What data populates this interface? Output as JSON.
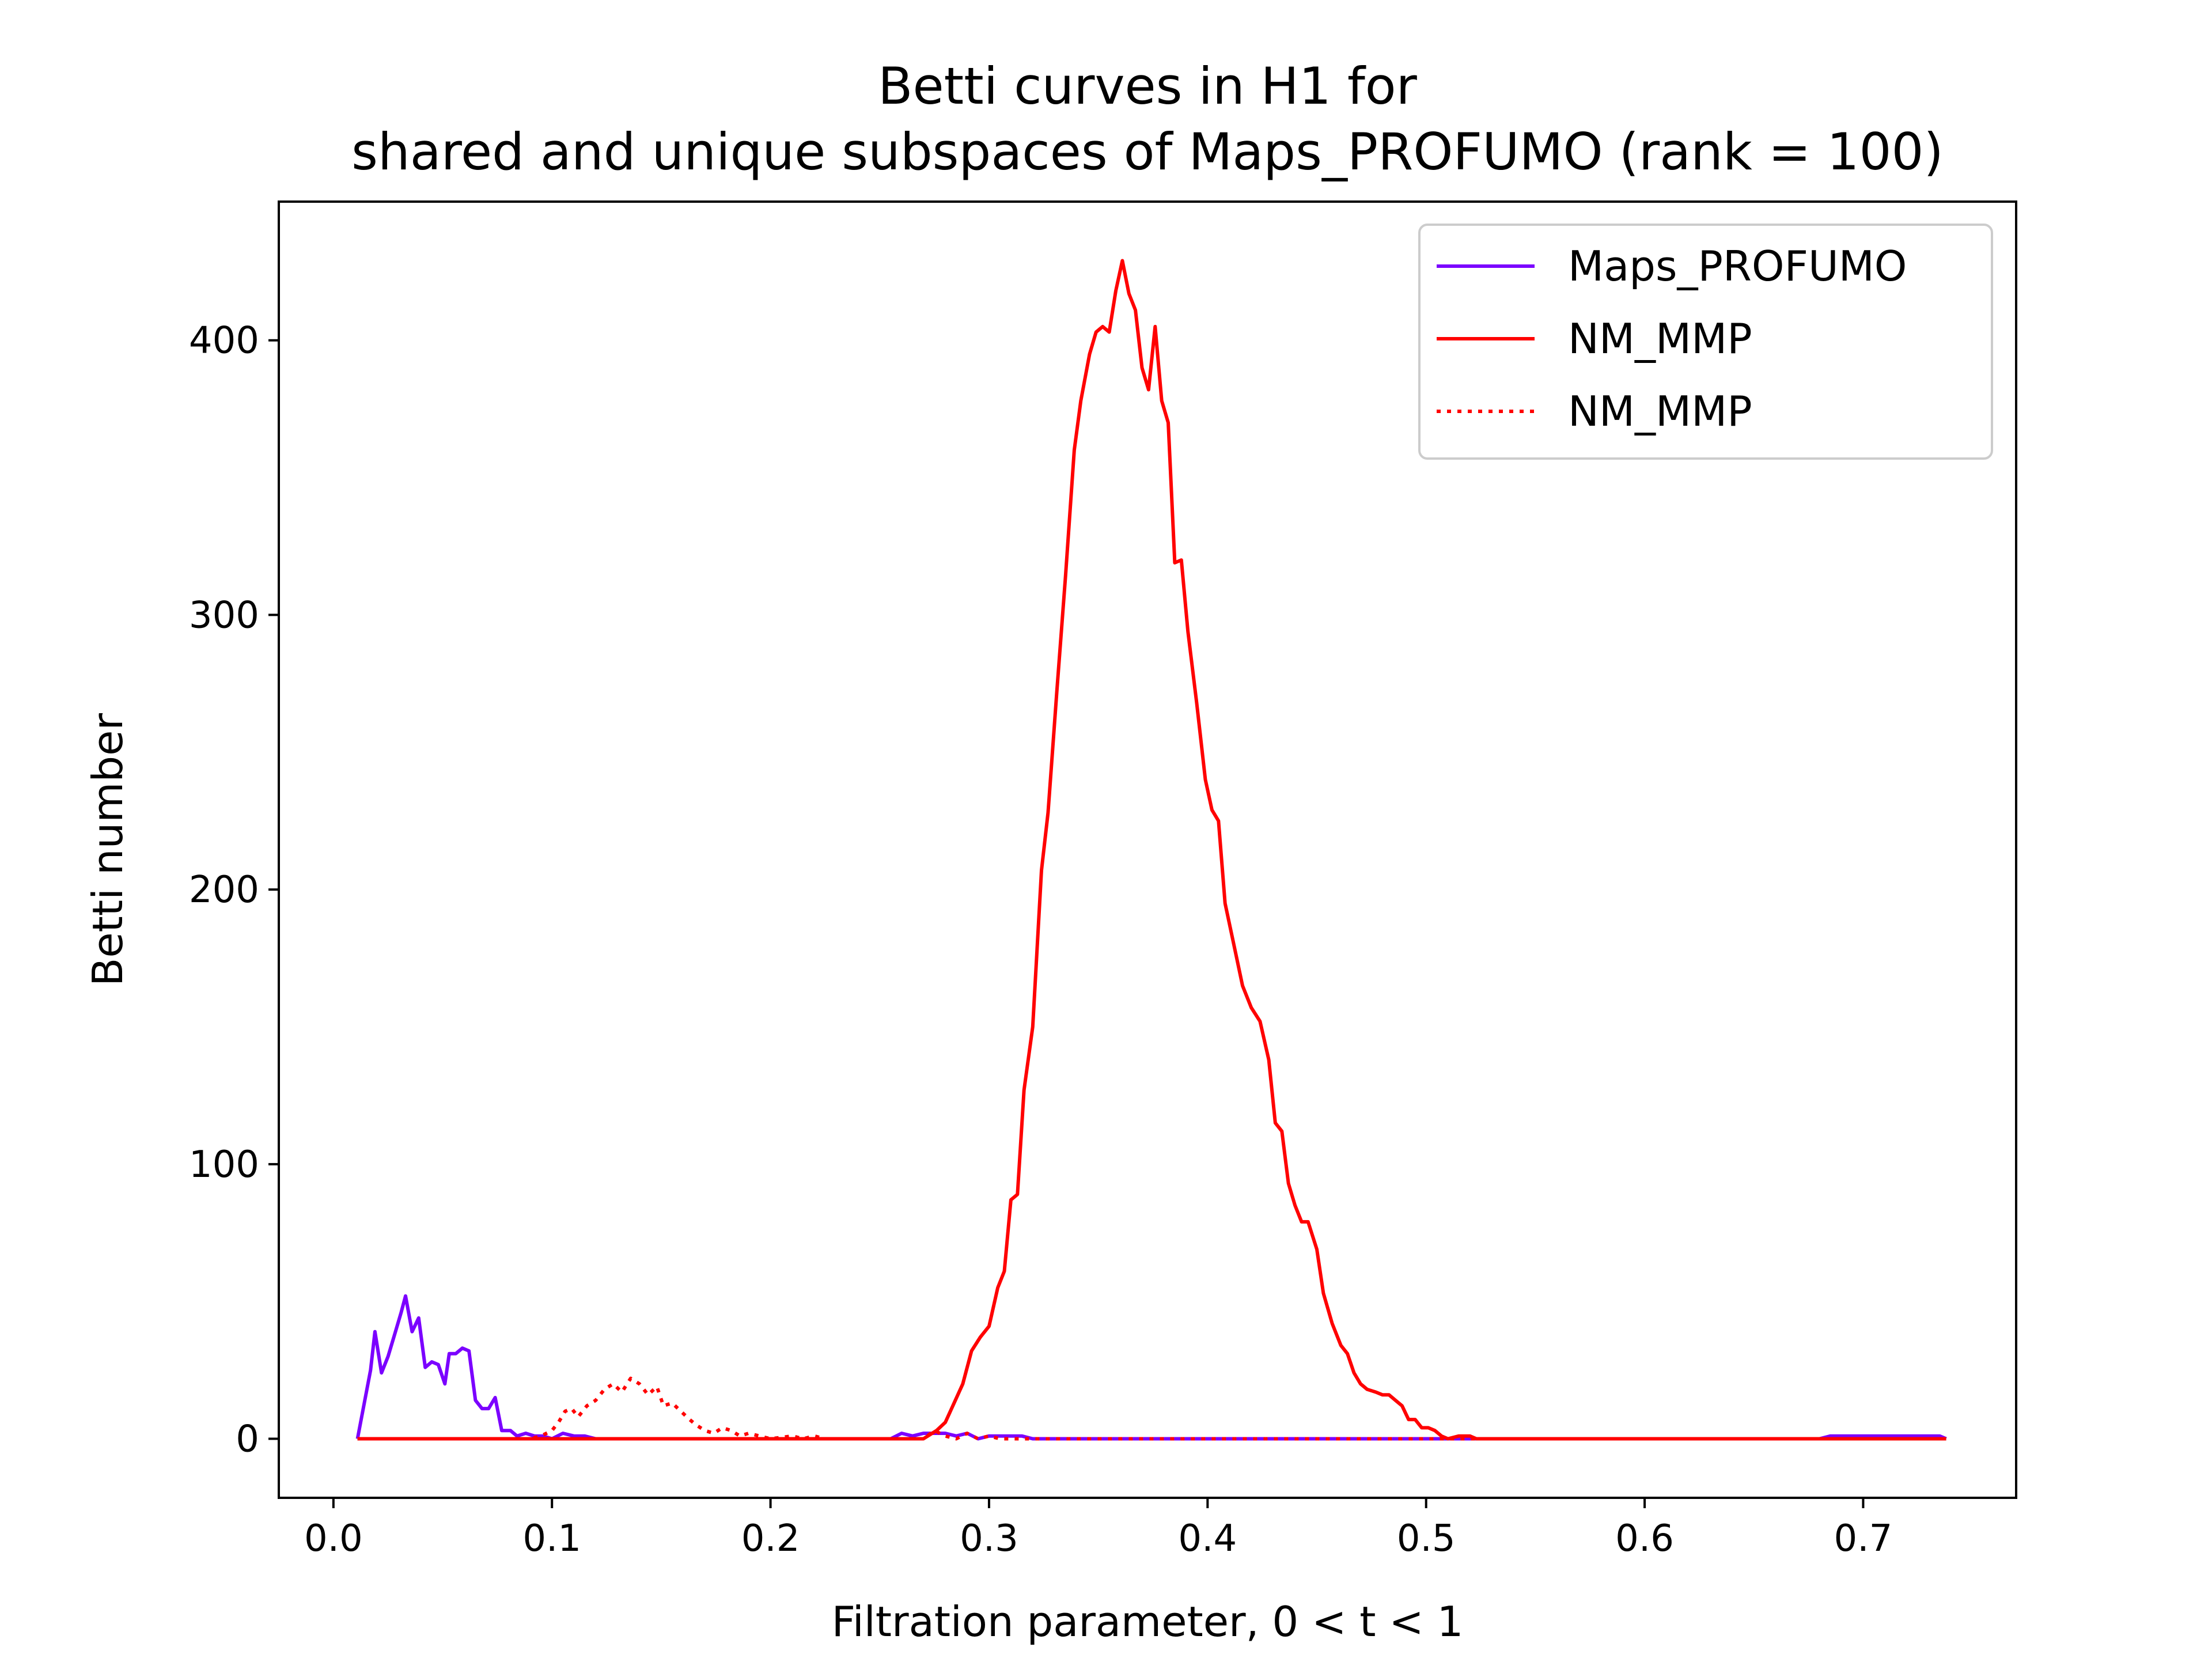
{
  "chart_data": {
    "type": "line",
    "title": [
      "Betti curves in H1 for",
      "shared and unique subspaces of Maps_PROFUMO (rank = 100)"
    ],
    "xlabel": "Filtration parameter, 0 < t < 1",
    "ylabel": "Betti number",
    "xlim": [
      -0.025,
      0.77
    ],
    "ylim": [
      -21.5,
      450.5
    ],
    "xticks": [
      0.0,
      0.1,
      0.2,
      0.3,
      0.4,
      0.5,
      0.6,
      0.7
    ],
    "xtick_labels": [
      "0.0",
      "0.1",
      "0.2",
      "0.3",
      "0.4",
      "0.5",
      "0.6",
      "0.7"
    ],
    "yticks": [
      0,
      100,
      200,
      300,
      400
    ],
    "ytick_labels": [
      "0",
      "100",
      "200",
      "300",
      "400"
    ],
    "grid": false,
    "legend_position": "top-right",
    "series": [
      {
        "name": "Maps_PROFUMO",
        "color": "#7b00ff",
        "style": "solid",
        "points": [
          [
            0.011,
            0
          ],
          [
            0.017,
            25
          ],
          [
            0.019,
            39
          ],
          [
            0.022,
            24
          ],
          [
            0.025,
            30
          ],
          [
            0.028,
            38
          ],
          [
            0.031,
            46
          ],
          [
            0.033,
            52
          ],
          [
            0.036,
            39
          ],
          [
            0.039,
            44
          ],
          [
            0.042,
            26
          ],
          [
            0.045,
            28
          ],
          [
            0.048,
            27
          ],
          [
            0.051,
            20
          ],
          [
            0.053,
            31
          ],
          [
            0.056,
            31
          ],
          [
            0.059,
            33
          ],
          [
            0.062,
            32
          ],
          [
            0.065,
            14
          ],
          [
            0.068,
            11
          ],
          [
            0.071,
            11
          ],
          [
            0.074,
            15
          ],
          [
            0.077,
            3
          ],
          [
            0.081,
            3
          ],
          [
            0.084,
            1
          ],
          [
            0.088,
            2
          ],
          [
            0.092,
            1
          ],
          [
            0.096,
            1
          ],
          [
            0.1,
            0
          ],
          [
            0.105,
            2
          ],
          [
            0.11,
            1
          ],
          [
            0.115,
            1
          ],
          [
            0.12,
            0
          ],
          [
            0.15,
            0
          ],
          [
            0.2,
            0
          ],
          [
            0.25,
            0
          ],
          [
            0.255,
            0
          ],
          [
            0.26,
            2
          ],
          [
            0.265,
            1
          ],
          [
            0.27,
            2
          ],
          [
            0.275,
            2
          ],
          [
            0.28,
            2
          ],
          [
            0.285,
            1
          ],
          [
            0.29,
            2
          ],
          [
            0.295,
            0
          ],
          [
            0.3,
            1
          ],
          [
            0.31,
            1
          ],
          [
            0.315,
            1
          ],
          [
            0.32,
            0
          ],
          [
            0.4,
            0
          ],
          [
            0.5,
            0
          ],
          [
            0.6,
            0
          ],
          [
            0.68,
            0
          ],
          [
            0.685,
            1
          ],
          [
            0.7,
            1
          ],
          [
            0.735,
            1
          ],
          [
            0.738,
            0
          ]
        ]
      },
      {
        "name": "NM_MMP",
        "color": "#ff0000",
        "style": "solid",
        "points": [
          [
            0.011,
            0
          ],
          [
            0.1,
            0
          ],
          [
            0.2,
            0
          ],
          [
            0.27,
            0
          ],
          [
            0.272,
            1
          ],
          [
            0.276,
            3
          ],
          [
            0.28,
            6
          ],
          [
            0.284,
            13
          ],
          [
            0.288,
            20
          ],
          [
            0.292,
            32
          ],
          [
            0.296,
            37
          ],
          [
            0.3,
            41
          ],
          [
            0.304,
            55
          ],
          [
            0.307,
            61
          ],
          [
            0.31,
            87
          ],
          [
            0.313,
            89
          ],
          [
            0.316,
            127
          ],
          [
            0.32,
            150
          ],
          [
            0.324,
            207
          ],
          [
            0.327,
            228
          ],
          [
            0.331,
            272
          ],
          [
            0.335,
            314
          ],
          [
            0.339,
            360
          ],
          [
            0.342,
            378
          ],
          [
            0.346,
            395
          ],
          [
            0.349,
            403
          ],
          [
            0.352,
            405
          ],
          [
            0.355,
            403
          ],
          [
            0.358,
            418
          ],
          [
            0.361,
            429
          ],
          [
            0.364,
            417
          ],
          [
            0.367,
            411
          ],
          [
            0.37,
            390
          ],
          [
            0.373,
            382
          ],
          [
            0.376,
            405
          ],
          [
            0.379,
            378
          ],
          [
            0.382,
            370
          ],
          [
            0.385,
            319
          ],
          [
            0.388,
            320
          ],
          [
            0.391,
            294
          ],
          [
            0.395,
            268
          ],
          [
            0.399,
            240
          ],
          [
            0.402,
            229
          ],
          [
            0.405,
            225
          ],
          [
            0.408,
            195
          ],
          [
            0.412,
            180
          ],
          [
            0.416,
            165
          ],
          [
            0.42,
            157
          ],
          [
            0.424,
            152
          ],
          [
            0.428,
            138
          ],
          [
            0.431,
            115
          ],
          [
            0.434,
            112
          ],
          [
            0.437,
            93
          ],
          [
            0.44,
            85
          ],
          [
            0.443,
            79
          ],
          [
            0.446,
            79
          ],
          [
            0.45,
            69
          ],
          [
            0.453,
            53
          ],
          [
            0.457,
            42
          ],
          [
            0.461,
            34
          ],
          [
            0.464,
            31
          ],
          [
            0.467,
            24
          ],
          [
            0.47,
            20
          ],
          [
            0.473,
            18
          ],
          [
            0.477,
            17
          ],
          [
            0.48,
            16
          ],
          [
            0.483,
            16
          ],
          [
            0.486,
            14
          ],
          [
            0.489,
            12
          ],
          [
            0.492,
            7
          ],
          [
            0.495,
            7
          ],
          [
            0.498,
            4
          ],
          [
            0.501,
            4
          ],
          [
            0.504,
            3
          ],
          [
            0.507,
            1
          ],
          [
            0.51,
            0
          ],
          [
            0.515,
            1
          ],
          [
            0.52,
            1
          ],
          [
            0.523,
            0
          ],
          [
            0.6,
            0
          ],
          [
            0.7,
            0
          ],
          [
            0.738,
            0
          ]
        ]
      },
      {
        "name": "NM_MMP",
        "color": "#ff0000",
        "style": "dotted",
        "points": [
          [
            0.011,
            0
          ],
          [
            0.09,
            0
          ],
          [
            0.095,
            1
          ],
          [
            0.1,
            3
          ],
          [
            0.103,
            6
          ],
          [
            0.106,
            10
          ],
          [
            0.109,
            11
          ],
          [
            0.112,
            8
          ],
          [
            0.116,
            12
          ],
          [
            0.12,
            14
          ],
          [
            0.124,
            18
          ],
          [
            0.128,
            20
          ],
          [
            0.132,
            17
          ],
          [
            0.136,
            22
          ],
          [
            0.14,
            20
          ],
          [
            0.144,
            16
          ],
          [
            0.148,
            19
          ],
          [
            0.151,
            12
          ],
          [
            0.155,
            13
          ],
          [
            0.159,
            10
          ],
          [
            0.163,
            7
          ],
          [
            0.166,
            5
          ],
          [
            0.17,
            3
          ],
          [
            0.174,
            2
          ],
          [
            0.178,
            4
          ],
          [
            0.182,
            3
          ],
          [
            0.186,
            1
          ],
          [
            0.19,
            2
          ],
          [
            0.195,
            1
          ],
          [
            0.2,
            0
          ],
          [
            0.21,
            1
          ],
          [
            0.215,
            0
          ],
          [
            0.22,
            1
          ],
          [
            0.225,
            0
          ],
          [
            0.27,
            0
          ],
          [
            0.275,
            3
          ],
          [
            0.28,
            1
          ],
          [
            0.285,
            0
          ],
          [
            0.29,
            2
          ],
          [
            0.295,
            0
          ],
          [
            0.3,
            1
          ],
          [
            0.305,
            0
          ],
          [
            0.31,
            0
          ],
          [
            0.4,
            0
          ],
          [
            0.5,
            0
          ],
          [
            0.6,
            0
          ],
          [
            0.7,
            0
          ],
          [
            0.738,
            0
          ]
        ]
      }
    ]
  }
}
